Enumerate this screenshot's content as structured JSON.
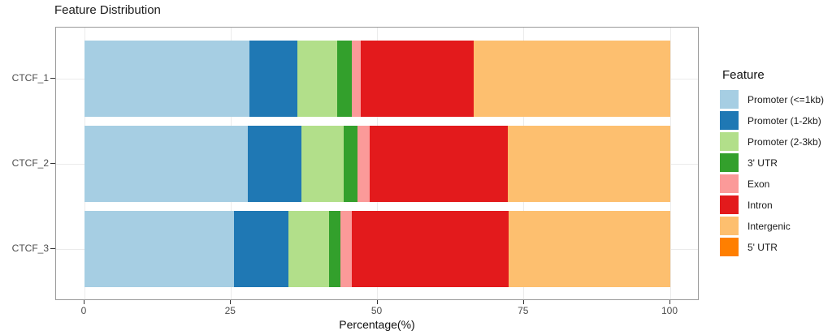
{
  "title": "Feature Distribution",
  "chart_data": {
    "type": "bar",
    "orientation": "horizontal",
    "stacked": true,
    "title": "Feature Distribution",
    "xlabel": "Percentage(%)",
    "ylabel": "",
    "xlim": [
      0,
      100
    ],
    "x_ticks": [
      0,
      25,
      50,
      75,
      100
    ],
    "grid": true,
    "legend_title": "Feature",
    "legend_position": "right",
    "categories": [
      "CTCF_1",
      "CTCF_2",
      "CTCF_3"
    ],
    "series": [
      {
        "name": "Promoter (<=1kb)",
        "color": "#A6CEE3",
        "values": [
          28.2,
          27.9,
          25.5
        ]
      },
      {
        "name": "Promoter (1-2kb)",
        "color": "#1F78B4",
        "values": [
          8.2,
          9.2,
          9.3
        ]
      },
      {
        "name": "Promoter (2-3kb)",
        "color": "#B2DF8A",
        "values": [
          6.8,
          7.2,
          6.9
        ]
      },
      {
        "name": "3' UTR",
        "color": "#33A02C",
        "values": [
          2.4,
          2.3,
          2.0
        ]
      },
      {
        "name": "Exon",
        "color": "#FB9A99",
        "values": [
          1.5,
          2.1,
          2.0
        ]
      },
      {
        "name": "Intron",
        "color": "#E31A1C",
        "values": [
          19.4,
          23.5,
          26.7
        ]
      },
      {
        "name": "Intergenic",
        "color": "#FDBF6F",
        "values": [
          33.5,
          27.8,
          27.6
        ]
      },
      {
        "name": "5' UTR",
        "color": "#FF7F00",
        "values": [
          0,
          0,
          0
        ]
      }
    ]
  }
}
